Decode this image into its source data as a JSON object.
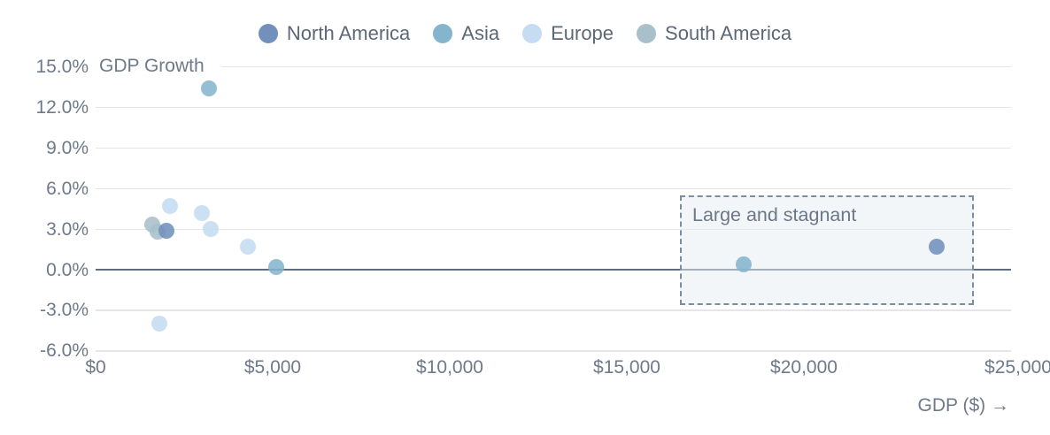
{
  "colors": {
    "background": "#ffffff",
    "grid": "#e4e6ec",
    "zero_line": "#5f6e7e",
    "axis_text": "#6e7a8a",
    "legend_text": "#5c6876",
    "annotation_border": "#7e8d9d",
    "annotation_fill": "rgba(231,237,244,0.5)",
    "annotation_text": "#6b7886"
  },
  "chart_data": {
    "type": "scatter",
    "title": "",
    "xlabel": "GDP ($) →",
    "ylabel": "GDP Growth",
    "grid": "horizontal",
    "legend_position": "top-center",
    "xlim": [
      0,
      25850
    ],
    "ylim": [
      -6.9,
      15.1
    ],
    "x_ticks": [
      {
        "label": "$0",
        "value": 0
      },
      {
        "label": "$5,000",
        "value": 5000
      },
      {
        "label": "$10,000",
        "value": 10000
      },
      {
        "label": "$15,000",
        "value": 15000
      },
      {
        "label": "$20,000",
        "value": 20000
      },
      {
        "label": "$25,000",
        "value": 25000
      }
    ],
    "y_ticks": [
      {
        "label": "15.0%",
        "value": 15
      },
      {
        "label": "12.0%",
        "value": 12
      },
      {
        "label": "9.0%",
        "value": 9
      },
      {
        "label": "6.0%",
        "value": 6
      },
      {
        "label": "3.0%",
        "value": 3
      },
      {
        "label": "0.0%",
        "value": 0
      },
      {
        "label": "-3.0%",
        "value": -3
      },
      {
        "label": "-6.0%",
        "value": -6
      }
    ],
    "series": [
      {
        "name": "North America",
        "color": "#7191bc",
        "points": [
          {
            "gdp": 2000,
            "growth": 2.9
          },
          {
            "gdp": 23750,
            "growth": 1.7
          }
        ]
      },
      {
        "name": "Asia",
        "color": "#85b5cd",
        "points": [
          {
            "gdp": 3200,
            "growth": 13.4
          },
          {
            "gdp": 5100,
            "growth": 0.2
          },
          {
            "gdp": 18300,
            "growth": 0.4
          }
        ]
      },
      {
        "name": "Europe",
        "color": "#c5dcf2",
        "points": [
          {
            "gdp": 2100,
            "growth": 4.7
          },
          {
            "gdp": 3000,
            "growth": 4.2
          },
          {
            "gdp": 3250,
            "growth": 3.0
          },
          {
            "gdp": 4300,
            "growth": 1.7
          },
          {
            "gdp": 1800,
            "growth": -4.0
          }
        ]
      },
      {
        "name": "South America",
        "color": "#a9bfca",
        "points": [
          {
            "gdp": 1600,
            "growth": 3.3
          },
          {
            "gdp": 1750,
            "growth": 2.8
          }
        ]
      }
    ],
    "annotation": {
      "label": "Large and stagnant",
      "gdp_range": [
        16500,
        24800
      ],
      "growth_range": [
        -2.6,
        5.5
      ]
    }
  }
}
